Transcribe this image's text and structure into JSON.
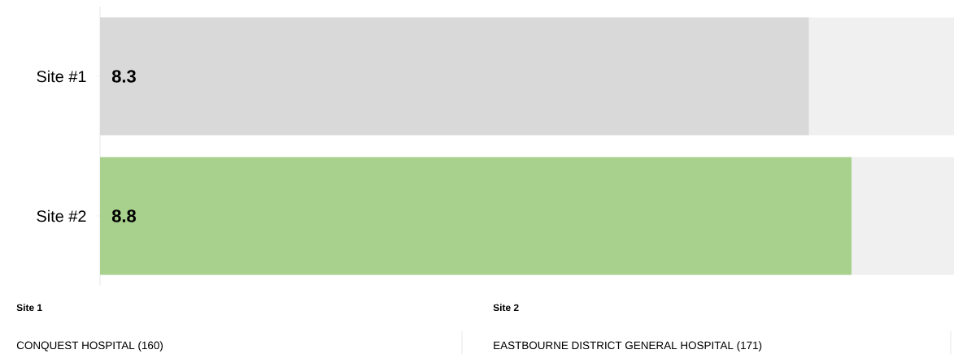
{
  "chart_data": {
    "type": "bar",
    "orientation": "horizontal",
    "categories": [
      "Site #1",
      "Site #2"
    ],
    "values": [
      8.3,
      8.8
    ],
    "colors": [
      "#d9d9d9",
      "#a9d18e"
    ],
    "value_labels": [
      "8.3",
      "8.8"
    ],
    "xlim": [
      0,
      10
    ],
    "annotations": [
      "Site 1",
      "Site 2",
      "CONQUEST HOSPITAL (160)",
      "EASTBOURNE DISTRICT GENERAL HOSPITAL (171)"
    ]
  }
}
